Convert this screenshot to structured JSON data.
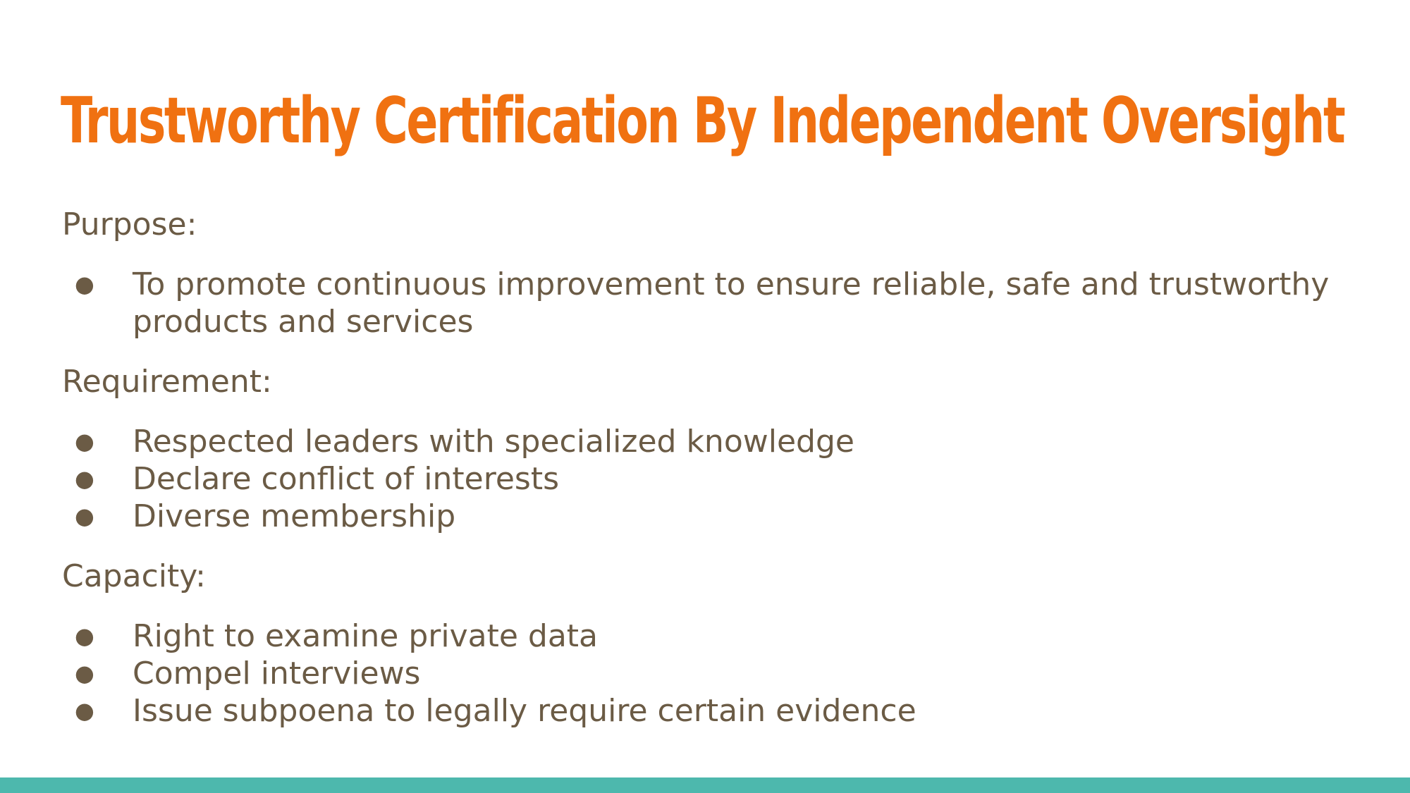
{
  "slide": {
    "title": "Trustworthy Certification By Independent Oversight",
    "sections": [
      {
        "heading": "Purpose:",
        "items": [
          "To promote  continuous improvement to ensure reliable, safe and trustworthy products and services"
        ]
      },
      {
        "heading": "Requirement:",
        "items": [
          "Respected leaders with specialized knowledge",
          "Declare conflict of interests",
          "Diverse membership"
        ]
      },
      {
        "heading": "Capacity:",
        "items": [
          "Right to examine private data",
          "Compel interviews",
          "Issue subpoena to legally require certain evidence"
        ]
      }
    ],
    "bullet_glyph": "●"
  },
  "colors": {
    "title": "#f07111",
    "body_text": "#6b5b45",
    "footer_bar": "#4db8ad",
    "background": "#ffffff"
  }
}
